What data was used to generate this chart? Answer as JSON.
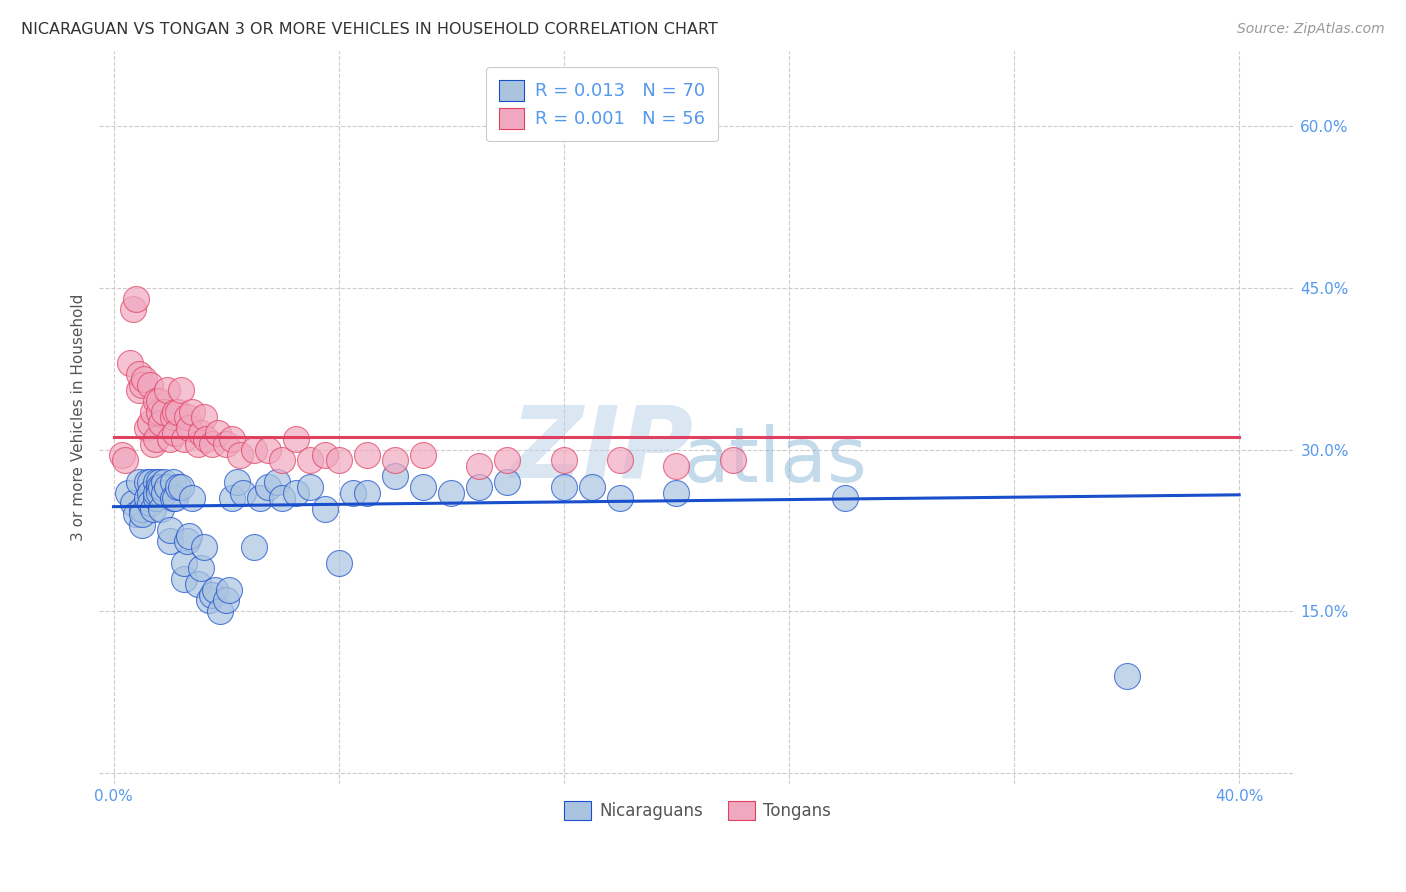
{
  "title": "NICARAGUAN VS TONGAN 3 OR MORE VEHICLES IN HOUSEHOLD CORRELATION CHART",
  "source": "Source: ZipAtlas.com",
  "ylabel": "3 or more Vehicles in Household",
  "ytick_values": [
    0.0,
    0.15,
    0.3,
    0.45,
    0.6
  ],
  "ytick_labels": [
    "",
    "15.0%",
    "30.0%",
    "45.0%",
    "60.0%"
  ],
  "xtick_values": [
    0.0,
    0.08,
    0.16,
    0.24,
    0.32,
    0.4
  ],
  "xtick_labels": [
    "0.0%",
    "",
    "",
    "",
    "",
    "40.0%"
  ],
  "xlim": [
    -0.005,
    0.42
  ],
  "ylim": [
    -0.01,
    0.67
  ],
  "nicaraguan_color": "#aac4e0",
  "tongan_color": "#f0a8c0",
  "regression_blue": "#1a4fcc",
  "regression_pink": "#e04060",
  "R_nicaraguan": "0.013",
  "N_nicaraguan": "70",
  "R_tongan": "0.001",
  "N_tongan": "56",
  "legend_label_nicaraguan": "Nicaraguans",
  "legend_label_tongan": "Tongans",
  "watermark_zip": "ZIP",
  "watermark_atlas": "atlas",
  "grid_color": "#cccccc",
  "background_color": "#ffffff",
  "tick_color": "#5599ee",
  "nicaraguan_x": [
    0.005,
    0.007,
    0.008,
    0.009,
    0.01,
    0.01,
    0.01,
    0.012,
    0.012,
    0.013,
    0.013,
    0.013,
    0.014,
    0.015,
    0.015,
    0.015,
    0.016,
    0.016,
    0.016,
    0.017,
    0.017,
    0.018,
    0.018,
    0.019,
    0.02,
    0.02,
    0.021,
    0.021,
    0.022,
    0.023,
    0.024,
    0.025,
    0.025,
    0.026,
    0.027,
    0.028,
    0.03,
    0.031,
    0.032,
    0.034,
    0.035,
    0.036,
    0.038,
    0.04,
    0.041,
    0.042,
    0.044,
    0.046,
    0.05,
    0.052,
    0.055,
    0.058,
    0.06,
    0.065,
    0.07,
    0.075,
    0.08,
    0.085,
    0.09,
    0.1,
    0.11,
    0.12,
    0.13,
    0.14,
    0.16,
    0.17,
    0.18,
    0.2,
    0.26,
    0.36
  ],
  "nicaraguan_y": [
    0.26,
    0.25,
    0.24,
    0.27,
    0.23,
    0.245,
    0.24,
    0.27,
    0.255,
    0.27,
    0.26,
    0.25,
    0.245,
    0.27,
    0.255,
    0.26,
    0.27,
    0.265,
    0.26,
    0.245,
    0.265,
    0.27,
    0.26,
    0.265,
    0.215,
    0.225,
    0.27,
    0.255,
    0.255,
    0.265,
    0.265,
    0.18,
    0.195,
    0.215,
    0.22,
    0.255,
    0.175,
    0.19,
    0.21,
    0.16,
    0.165,
    0.17,
    0.15,
    0.16,
    0.17,
    0.255,
    0.27,
    0.26,
    0.21,
    0.255,
    0.265,
    0.27,
    0.255,
    0.26,
    0.265,
    0.245,
    0.195,
    0.26,
    0.26,
    0.275,
    0.265,
    0.26,
    0.265,
    0.27,
    0.265,
    0.265,
    0.255,
    0.26,
    0.255,
    0.09
  ],
  "tongan_x": [
    0.003,
    0.004,
    0.006,
    0.007,
    0.008,
    0.009,
    0.009,
    0.01,
    0.011,
    0.012,
    0.013,
    0.013,
    0.014,
    0.014,
    0.015,
    0.015,
    0.016,
    0.016,
    0.017,
    0.018,
    0.019,
    0.02,
    0.021,
    0.022,
    0.022,
    0.023,
    0.024,
    0.025,
    0.026,
    0.027,
    0.028,
    0.03,
    0.031,
    0.032,
    0.033,
    0.035,
    0.037,
    0.04,
    0.042,
    0.045,
    0.05,
    0.055,
    0.06,
    0.065,
    0.07,
    0.075,
    0.08,
    0.09,
    0.1,
    0.11,
    0.13,
    0.14,
    0.16,
    0.18,
    0.2,
    0.22
  ],
  "tongan_y": [
    0.295,
    0.29,
    0.38,
    0.43,
    0.44,
    0.355,
    0.37,
    0.36,
    0.365,
    0.32,
    0.325,
    0.36,
    0.305,
    0.335,
    0.31,
    0.345,
    0.335,
    0.345,
    0.325,
    0.335,
    0.355,
    0.31,
    0.33,
    0.335,
    0.315,
    0.335,
    0.355,
    0.31,
    0.33,
    0.32,
    0.335,
    0.305,
    0.315,
    0.33,
    0.31,
    0.305,
    0.315,
    0.305,
    0.31,
    0.295,
    0.3,
    0.3,
    0.29,
    0.31,
    0.29,
    0.295,
    0.29,
    0.295,
    0.29,
    0.295,
    0.285,
    0.29,
    0.29,
    0.29,
    0.285,
    0.29
  ],
  "blue_trend_x": [
    0.0,
    0.4
  ],
  "blue_trend_y": [
    0.247,
    0.258
  ],
  "pink_trend_x": [
    0.0,
    0.4
  ],
  "pink_trend_y": [
    0.312,
    0.312
  ]
}
